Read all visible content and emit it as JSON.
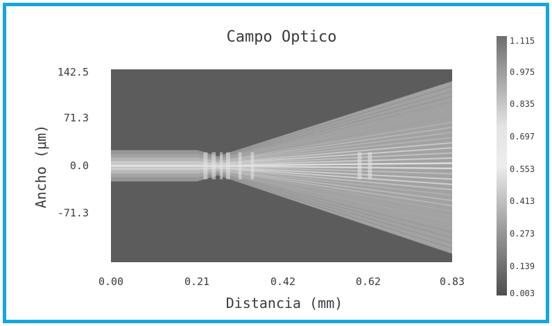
{
  "chart_data": {
    "type": "heatmap",
    "title": "Campo Optico",
    "xlabel": "Distancia (mm)",
    "ylabel": "Ancho (μm)",
    "x_ticks": [
      "0.00",
      "0.21",
      "0.42",
      "0.62",
      "0.83"
    ],
    "y_ticks": [
      "142.5",
      "71.3",
      "0.0",
      "-71.3"
    ],
    "x_range": [
      0.0,
      0.83
    ],
    "y_range": [
      -142.5,
      142.5
    ],
    "colorbar": {
      "labels": [
        "1.115",
        "0.975",
        "0.835",
        "0.697",
        "0.553",
        "0.413",
        "0.273",
        "0.139",
        "0.003"
      ],
      "range": [
        0.003,
        1.115
      ],
      "colormap": "grayscale"
    },
    "field": {
      "background_value": 0.2,
      "straight_section_end_mm": 0.21,
      "waist_mm": 0.26,
      "input_half_width_um": 23,
      "waist_half_width_um": 14,
      "output_upper_edge_um": 125,
      "output_lower_edge_um": -130
    }
  },
  "colors": {
    "frame": "#14a6de",
    "text": "#3a3a3a",
    "plot_background": "#5c5c5c"
  }
}
